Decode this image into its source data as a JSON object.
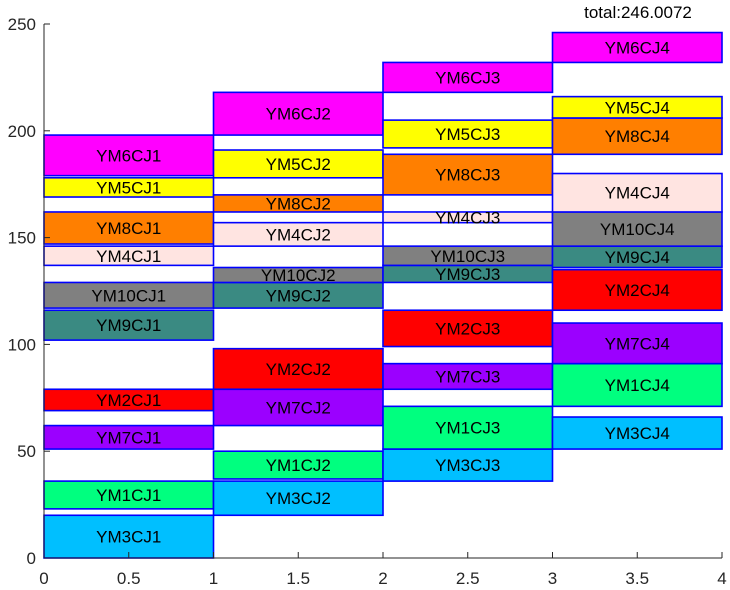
{
  "chart_data": {
    "type": "bar",
    "total_label": "total:246.0072",
    "xlim": [
      0,
      4
    ],
    "ylim": [
      0,
      250
    ],
    "xticks": [
      "0",
      "0.5",
      "1",
      "1.5",
      "2",
      "2.5",
      "3",
      "3.5",
      "4"
    ],
    "yticks": [
      "0",
      "50",
      "100",
      "150",
      "200",
      "250"
    ],
    "grid": false,
    "legend": "none",
    "colors": {
      "YM1": "#00ff7f",
      "YM2": "#ff0000",
      "YM3": "#00bfff",
      "YM4": "#ffe4e1",
      "YM5": "#ffff00",
      "YM6": "#ff00ff",
      "YM7": "#9b00ff",
      "YM8": "#ff7f00",
      "YM9": "#3a8a82",
      "YM10": "#808080",
      "edge": "#0000ff",
      "axis": "#262626"
    },
    "blocks": [
      {
        "label": "YM3CJ1",
        "job": "YM3",
        "x0": 0,
        "x1": 1,
        "y0": 0,
        "y1": 20
      },
      {
        "label": "YM1CJ1",
        "job": "YM1",
        "x0": 0,
        "x1": 1,
        "y0": 23,
        "y1": 36
      },
      {
        "label": "YM7CJ1",
        "job": "YM7",
        "x0": 0,
        "x1": 1,
        "y0": 51,
        "y1": 62
      },
      {
        "label": "YM2CJ1",
        "job": "YM2",
        "x0": 0,
        "x1": 1,
        "y0": 69,
        "y1": 79
      },
      {
        "label": "YM9CJ1",
        "job": "YM9",
        "x0": 0,
        "x1": 1,
        "y0": 102,
        "y1": 116
      },
      {
        "label": "YM10CJ1",
        "job": "YM10",
        "x0": 0,
        "x1": 1,
        "y0": 117,
        "y1": 129
      },
      {
        "label": "YM4CJ1",
        "job": "YM4",
        "x0": 0,
        "x1": 1,
        "y0": 137,
        "y1": 146
      },
      {
        "label": "YM8CJ1",
        "job": "YM8",
        "x0": 0,
        "x1": 1,
        "y0": 147,
        "y1": 162
      },
      {
        "label": "YM5CJ1",
        "job": "YM5",
        "x0": 0,
        "x1": 1,
        "y0": 169,
        "y1": 178
      },
      {
        "label": "YM6CJ1",
        "job": "YM6",
        "x0": 0,
        "x1": 1,
        "y0": 179,
        "y1": 198
      },
      {
        "label": "YM3CJ2",
        "job": "YM3",
        "x0": 1,
        "x1": 2,
        "y0": 20,
        "y1": 36
      },
      {
        "label": "YM1CJ2",
        "job": "YM1",
        "x0": 1,
        "x1": 2,
        "y0": 37,
        "y1": 50
      },
      {
        "label": "YM7CJ2",
        "job": "YM7",
        "x0": 1,
        "x1": 2,
        "y0": 62,
        "y1": 79
      },
      {
        "label": "YM2CJ2",
        "job": "YM2",
        "x0": 1,
        "x1": 2,
        "y0": 79,
        "y1": 98
      },
      {
        "label": "YM9CJ2",
        "job": "YM9",
        "x0": 1,
        "x1": 2,
        "y0": 117,
        "y1": 129
      },
      {
        "label": "YM10CJ2",
        "job": "YM10",
        "x0": 1,
        "x1": 2,
        "y0": 129,
        "y1": 136
      },
      {
        "label": "YM4CJ2",
        "job": "YM4",
        "x0": 1,
        "x1": 2,
        "y0": 146,
        "y1": 157
      },
      {
        "label": "YM8CJ2",
        "job": "YM8",
        "x0": 1,
        "x1": 2,
        "y0": 162,
        "y1": 170
      },
      {
        "label": "YM5CJ2",
        "job": "YM5",
        "x0": 1,
        "x1": 2,
        "y0": 178,
        "y1": 191
      },
      {
        "label": "YM6CJ2",
        "job": "YM6",
        "x0": 1,
        "x1": 2,
        "y0": 198,
        "y1": 218
      },
      {
        "label": "YM3CJ3",
        "job": "YM3",
        "x0": 2,
        "x1": 3,
        "y0": 36,
        "y1": 51
      },
      {
        "label": "YM1CJ3",
        "job": "YM1",
        "x0": 2,
        "x1": 3,
        "y0": 51,
        "y1": 71
      },
      {
        "label": "YM7CJ3",
        "job": "YM7",
        "x0": 2,
        "x1": 3,
        "y0": 79,
        "y1": 91
      },
      {
        "label": "YM2CJ3",
        "job": "YM2",
        "x0": 2,
        "x1": 3,
        "y0": 99,
        "y1": 116
      },
      {
        "label": "YM9CJ3",
        "job": "YM9",
        "x0": 2,
        "x1": 3,
        "y0": 129,
        "y1": 137
      },
      {
        "label": "YM10CJ3",
        "job": "YM10",
        "x0": 2,
        "x1": 3,
        "y0": 137,
        "y1": 146
      },
      {
        "label": "YM4CJ3",
        "job": "YM4",
        "x0": 2,
        "x1": 3,
        "y0": 157,
        "y1": 162
      },
      {
        "label": "YM8CJ3",
        "job": "YM8",
        "x0": 2,
        "x1": 3,
        "y0": 170,
        "y1": 189
      },
      {
        "label": "YM5CJ3",
        "job": "YM5",
        "x0": 2,
        "x1": 3,
        "y0": 192,
        "y1": 205
      },
      {
        "label": "YM6CJ3",
        "job": "YM6",
        "x0": 2,
        "x1": 3,
        "y0": 218,
        "y1": 232
      },
      {
        "label": "YM3CJ4",
        "job": "YM3",
        "x0": 3,
        "x1": 4,
        "y0": 51,
        "y1": 66
      },
      {
        "label": "YM1CJ4",
        "job": "YM1",
        "x0": 3,
        "x1": 4,
        "y0": 71,
        "y1": 91
      },
      {
        "label": "YM7CJ4",
        "job": "YM7",
        "x0": 3,
        "x1": 4,
        "y0": 91,
        "y1": 110
      },
      {
        "label": "YM2CJ4",
        "job": "YM2",
        "x0": 3,
        "x1": 4,
        "y0": 116,
        "y1": 135
      },
      {
        "label": "YM9CJ4",
        "job": "YM9",
        "x0": 3,
        "x1": 4,
        "y0": 136,
        "y1": 146
      },
      {
        "label": "YM10CJ4",
        "job": "YM10",
        "x0": 3,
        "x1": 4,
        "y0": 146,
        "y1": 162
      },
      {
        "label": "YM4CJ4",
        "job": "YM4",
        "x0": 3,
        "x1": 4,
        "y0": 162,
        "y1": 180
      },
      {
        "label": "YM8CJ4",
        "job": "YM8",
        "x0": 3,
        "x1": 4,
        "y0": 189,
        "y1": 206
      },
      {
        "label": "YM5CJ4",
        "job": "YM5",
        "x0": 3,
        "x1": 4,
        "y0": 206,
        "y1": 216
      },
      {
        "label": "YM6CJ4",
        "job": "YM6",
        "x0": 3,
        "x1": 4,
        "y0": 232,
        "y1": 246
      }
    ]
  }
}
